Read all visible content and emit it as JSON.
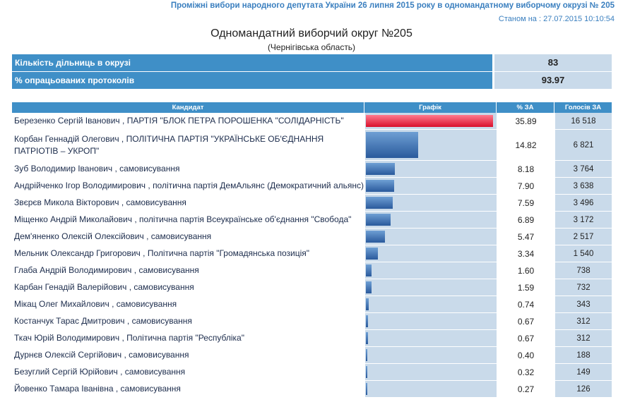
{
  "header": {
    "election_title": "Проміжні вибори народного депутата України 26 липня 2015 року в одномандатному виборчому окрузі № 205",
    "as_of": "Станом на : 27.07.2015 10:10:54"
  },
  "district": {
    "title": "Одномандатний виборчий округ №205",
    "region": "(Чернігівська область)"
  },
  "summary": [
    {
      "label": "Кількість дільниць в окрузі",
      "value": "83"
    },
    {
      "label": "% опрацьованих протоколів",
      "value": "93.97"
    }
  ],
  "table": {
    "columns": [
      "Кандидат",
      "Графік",
      "% ЗА",
      "Голосів ЗА"
    ],
    "rows": [
      {
        "candidate": "Березенко Сергій Іванович",
        "party": "ПАРТІЯ \"БЛОК ПЕТРА ПОРОШЕНКА \"СОЛІДАРНІСТЬ\"",
        "percent": "35.89",
        "votes": "16 518",
        "share": 35.89,
        "leader": true
      },
      {
        "candidate": "Корбан Геннадій Олегович",
        "party": "ПОЛІТИЧНА ПАРТІЯ \"УКРАЇНСЬКЕ ОБ'ЄДНАННЯ ПАТРІОТІВ – УКРОП\"",
        "percent": "14.82",
        "votes": "6 821",
        "share": 14.82,
        "tall": true
      },
      {
        "candidate": "Зуб Володимир Іванович",
        "party": "самовисування",
        "percent": "8.18",
        "votes": "3 764",
        "share": 8.18
      },
      {
        "candidate": "Андрійченко Ігор Володимирович",
        "party": "політична партія ДемАльянс (Демократичний альянс)",
        "percent": "7.90",
        "votes": "3 638",
        "share": 7.9
      },
      {
        "candidate": "Звєрєв Микола Вікторович",
        "party": "самовисування",
        "percent": "7.59",
        "votes": "3 496",
        "share": 7.59
      },
      {
        "candidate": "Міщенко Андрій Миколайович",
        "party": "політична партія Всеукраїнське об'єднання \"Свобода\"",
        "percent": "6.89",
        "votes": "3 172",
        "share": 6.89
      },
      {
        "candidate": "Дем'яненко Олексій Олексійович",
        "party": "самовисування",
        "percent": "5.47",
        "votes": "2 517",
        "share": 5.47
      },
      {
        "candidate": "Мельник Олександр Григорович",
        "party": "Політична партія \"Громадянська позиція\"",
        "percent": "3.34",
        "votes": "1 540",
        "share": 3.34
      },
      {
        "candidate": "Глаба Андрій Володимирович",
        "party": "самовисування",
        "percent": "1.60",
        "votes": "738",
        "share": 1.6
      },
      {
        "candidate": "Карбан Генадій Валерійович",
        "party": "самовисування",
        "percent": "1.59",
        "votes": "732",
        "share": 1.59
      },
      {
        "candidate": "Мікац Олег Михайлович",
        "party": "самовисування",
        "percent": "0.74",
        "votes": "343",
        "share": 0.74
      },
      {
        "candidate": "Костанчук Тарас Дмитрович",
        "party": "самовисування",
        "percent": "0.67",
        "votes": "312",
        "share": 0.67
      },
      {
        "candidate": "Ткач Юрій Володимирович",
        "party": "Політична партія \"Республіка\"",
        "percent": "0.67",
        "votes": "312",
        "share": 0.67
      },
      {
        "candidate": "Дурнєв Олексій Сергійович",
        "party": "самовисування",
        "percent": "0.40",
        "votes": "188",
        "share": 0.4
      },
      {
        "candidate": "Безуглий Сергій Юрійович",
        "party": "самовисування",
        "percent": "0.32",
        "votes": "149",
        "share": 0.32
      },
      {
        "candidate": "Йовенко Тамара Іванівна",
        "party": "самовисування",
        "percent": "0.27",
        "votes": "126",
        "share": 0.27
      }
    ]
  },
  "colors": {
    "accent": "#3f8fc7",
    "cell_bg": "#c9daea",
    "bar": "#2a5a9c",
    "leader_bar": "#d9102c"
  }
}
